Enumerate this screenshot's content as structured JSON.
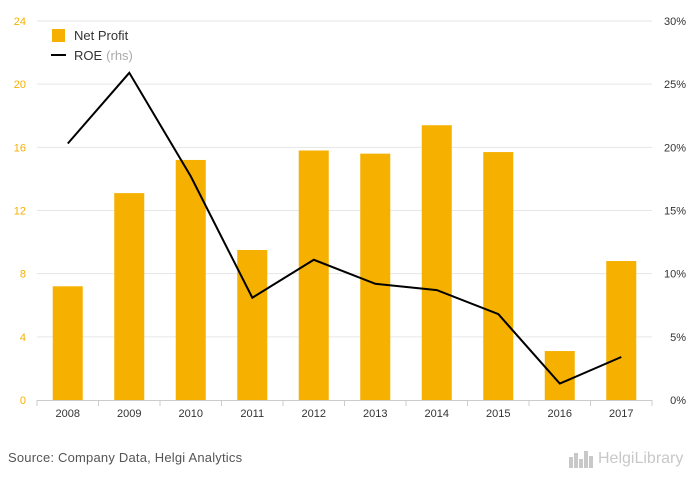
{
  "chart_data": {
    "type": "bar+line",
    "categories": [
      "2008",
      "2009",
      "2010",
      "2011",
      "2012",
      "2013",
      "2014",
      "2015",
      "2016",
      "2017"
    ],
    "series": [
      {
        "name": "Net Profit",
        "type": "bar",
        "axis": "left",
        "color": "#f5b000",
        "values": [
          7.2,
          13.1,
          15.2,
          9.5,
          15.8,
          15.6,
          17.4,
          15.7,
          3.1,
          8.8
        ]
      },
      {
        "name": "ROE",
        "name_suffix": "(rhs)",
        "type": "line",
        "axis": "right",
        "color": "#000000",
        "values": [
          20.3,
          25.9,
          17.7,
          8.1,
          11.1,
          9.2,
          8.7,
          6.8,
          1.3,
          3.4
        ]
      }
    ],
    "left_axis": {
      "ticks": [
        "0",
        "4",
        "8",
        "12",
        "16",
        "20",
        "24"
      ],
      "min": 0,
      "max": 24,
      "color": "#f5b000"
    },
    "right_axis": {
      "ticks": [
        "0%",
        "5%",
        "10%",
        "15%",
        "20%",
        "25%",
        "30%"
      ],
      "min": 0,
      "max": 30
    },
    "legend_position": "top-left",
    "grid": true
  },
  "footer": {
    "source": "Source: Company Data, Helgi Analytics",
    "logo_text": "HelgiLibrary"
  }
}
